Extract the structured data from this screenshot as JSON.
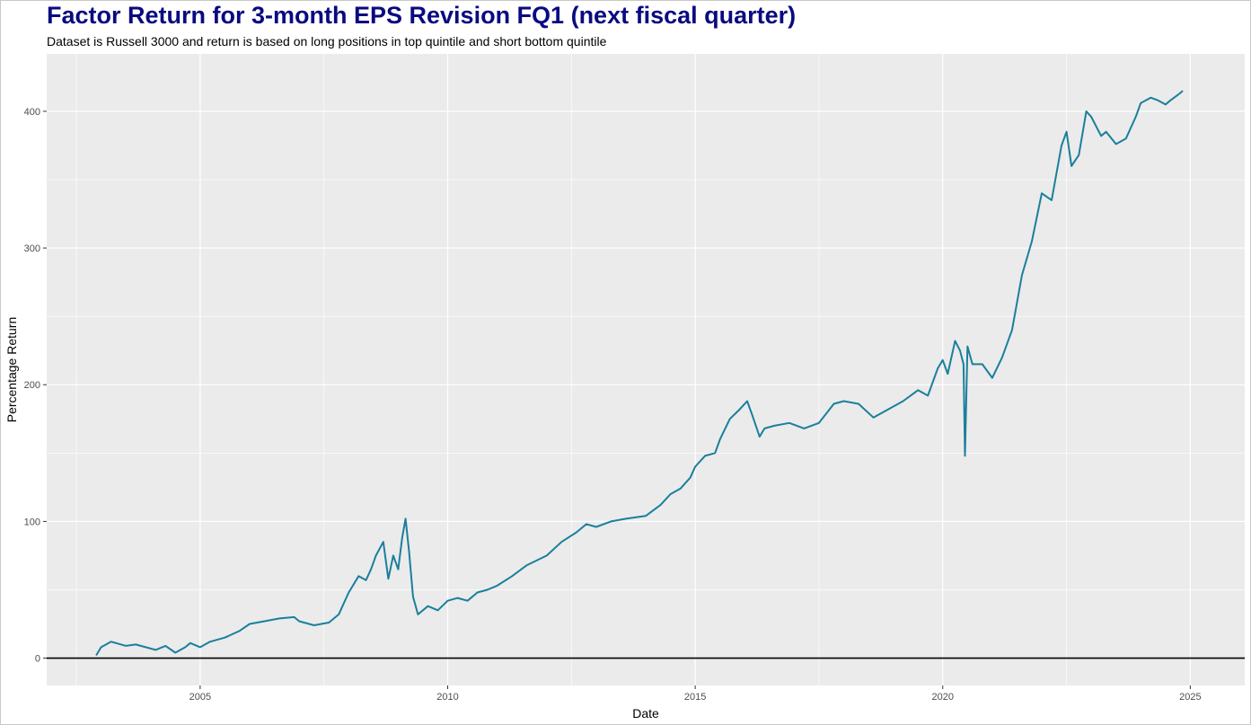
{
  "chart_data": {
    "type": "line",
    "title": "Factor Return for 3-month EPS Revision FQ1 (next fiscal quarter)",
    "subtitle": "Dataset is Russell 3000 and return is based on long positions in top quintile and short bottom quintile",
    "xlabel": "Date",
    "ylabel": "Percentage Return",
    "xlim": [
      2001.9,
      2026.1
    ],
    "ylim": [
      -20,
      442
    ],
    "x_ticks": [
      {
        "value": 2005,
        "label": "2005"
      },
      {
        "value": 2010,
        "label": "2010"
      },
      {
        "value": 2015,
        "label": "2015"
      },
      {
        "value": 2020,
        "label": "2020"
      },
      {
        "value": 2025,
        "label": "2025"
      }
    ],
    "y_ticks": [
      {
        "value": 0,
        "label": "0"
      },
      {
        "value": 100,
        "label": "100"
      },
      {
        "value": 200,
        "label": "200"
      },
      {
        "value": 300,
        "label": "300"
      },
      {
        "value": 400,
        "label": "400"
      }
    ],
    "grid": true,
    "background": "#ebebeb",
    "line_color": "#1a7f9c",
    "reference_line": {
      "y": 0,
      "color": "#000000"
    },
    "series": [
      {
        "x": [
          2002.9,
          2003.0,
          2003.1,
          2003.2,
          2003.3,
          2003.5,
          2003.7,
          2003.9,
          2004.1,
          2004.3,
          2004.5,
          2004.7,
          2004.8,
          2005.0,
          2005.2,
          2005.5,
          2005.8,
          2006.0,
          2006.3,
          2006.6,
          2006.9,
          2007.0,
          2007.3,
          2007.6,
          2007.8,
          2008.0,
          2008.2,
          2008.35,
          2008.45,
          2008.55,
          2008.7,
          2008.8,
          2008.9,
          2009.0,
          2009.08,
          2009.15,
          2009.22,
          2009.3,
          2009.4,
          2009.6,
          2009.8,
          2010.0,
          2010.2,
          2010.4,
          2010.6,
          2010.8,
          2011.0,
          2011.3,
          2011.6,
          2012.0,
          2012.3,
          2012.6,
          2012.8,
          2013.0,
          2013.3,
          2013.6,
          2014.0,
          2014.3,
          2014.5,
          2014.7,
          2014.9,
          2015.0,
          2015.2,
          2015.4,
          2015.5,
          2015.7,
          2015.9,
          2016.05,
          2016.15,
          2016.3,
          2016.4,
          2016.6,
          2016.9,
          2017.2,
          2017.5,
          2017.8,
          2018.0,
          2018.3,
          2018.6,
          2018.9,
          2019.2,
          2019.5,
          2019.7,
          2019.9,
          2020.0,
          2020.1,
          2020.25,
          2020.35,
          2020.42,
          2020.45,
          2020.5,
          2020.6,
          2020.8,
          2021.0,
          2021.2,
          2021.4,
          2021.6,
          2021.8,
          2022.0,
          2022.2,
          2022.4,
          2022.5,
          2022.6,
          2022.75,
          2022.9,
          2023.0,
          2023.2,
          2023.3,
          2023.5,
          2023.7,
          2023.9,
          2024.0,
          2024.2,
          2024.35,
          2024.5,
          2024.6,
          2024.75,
          2024.85
        ],
        "y": [
          2,
          8,
          10,
          12,
          11,
          9,
          10,
          8,
          6,
          9,
          4,
          8,
          11,
          8,
          12,
          15,
          20,
          25,
          27,
          29,
          30,
          27,
          24,
          26,
          32,
          48,
          60,
          57,
          65,
          75,
          85,
          58,
          75,
          65,
          88,
          102,
          78,
          45,
          32,
          38,
          35,
          42,
          44,
          42,
          48,
          50,
          53,
          60,
          68,
          75,
          85,
          92,
          98,
          96,
          100,
          102,
          104,
          112,
          120,
          124,
          132,
          140,
          148,
          150,
          160,
          175,
          182,
          188,
          178,
          162,
          168,
          170,
          172,
          168,
          172,
          186,
          188,
          186,
          176,
          182,
          188,
          196,
          192,
          212,
          218,
          208,
          232,
          225,
          215,
          148,
          228,
          215,
          215,
          205,
          220,
          240,
          280,
          305,
          340,
          335,
          375,
          385,
          360,
          368,
          400,
          396,
          382,
          385,
          376,
          380,
          396,
          406,
          410,
          408,
          405,
          408,
          412,
          415
        ]
      }
    ]
  }
}
